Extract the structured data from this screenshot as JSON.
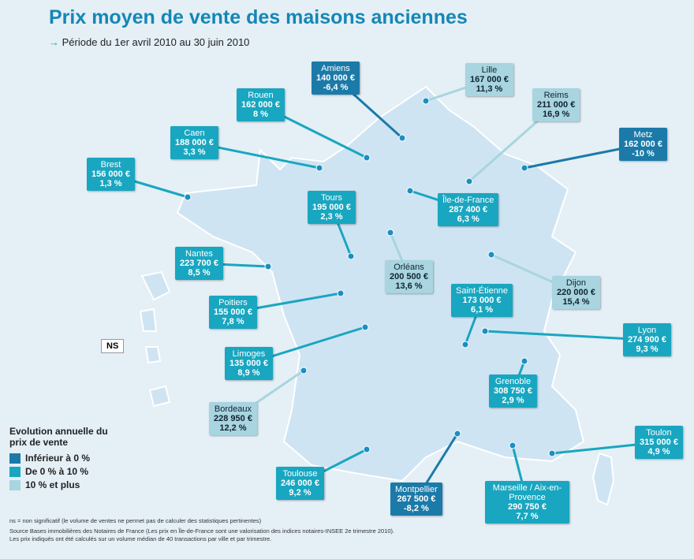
{
  "header": {
    "title": "Prix moyen de vente des maisons anciennes",
    "subtitle": "Période du 1er avril 2010 au 30 juin 2010"
  },
  "cities": [
    {
      "name": "Amiens",
      "price": "140 000 €",
      "change": "-6,4 %",
      "color": "#1b7aa8"
    },
    {
      "name": "Lille",
      "price": "167 000 €",
      "change": "11,3 %",
      "color": "#a8d5df"
    },
    {
      "name": "Rouen",
      "price": "162 000 €",
      "change": "8 %",
      "color": "#19a6c0"
    },
    {
      "name": "Reims",
      "price": "211 000 €",
      "change": "16,9 %",
      "color": "#a8d5df"
    },
    {
      "name": "Metz",
      "price": "162 000 €",
      "change": "-10 %",
      "color": "#1b7aa8"
    },
    {
      "name": "Caen",
      "price": "188 000 €",
      "change": "3,3 %",
      "color": "#19a6c0"
    },
    {
      "name": "Brest",
      "price": "156 000 €",
      "change": "1,3 %",
      "color": "#19a6c0"
    },
    {
      "name": "Tours",
      "price": "195 000 €",
      "change": "2,3 %",
      "color": "#19a6c0"
    },
    {
      "name": "Île-de-France",
      "price": "287 400 €",
      "change": "6,3 %",
      "color": "#19a6c0"
    },
    {
      "name": "Nantes",
      "price": "223 700 €",
      "change": "8,5 %",
      "color": "#19a6c0"
    },
    {
      "name": "Orléans",
      "price": "200 500 €",
      "change": "13,6 %",
      "color": "#a8d5df"
    },
    {
      "name": "Saint-Étienne",
      "price": "173 000 €",
      "change": "6,1 %",
      "color": "#19a6c0"
    },
    {
      "name": "Dijon",
      "price": "220 000 €",
      "change": "15,4 %",
      "color": "#a8d5df"
    },
    {
      "name": "Poitiers",
      "price": "155 000 €",
      "change": "7,8 %",
      "color": "#19a6c0"
    },
    {
      "name": "Lyon",
      "price": "274 900 €",
      "change": "9,3 %",
      "color": "#19a6c0"
    },
    {
      "name": "Limoges",
      "price": "135 000 €",
      "change": "8,9 %",
      "color": "#19a6c0"
    },
    {
      "name": "Grenoble",
      "price": "308 750 €",
      "change": "2,9 %",
      "color": "#19a6c0"
    },
    {
      "name": "Bordeaux",
      "price": "228 950 €",
      "change": "12,2 %",
      "color": "#a8d5df"
    },
    {
      "name": "Toulon",
      "price": "315 000 €",
      "change": "4,9 %",
      "color": "#19a6c0"
    },
    {
      "name": "Toulouse",
      "price": "246 000 €",
      "change": "9,2 %",
      "color": "#19a6c0"
    },
    {
      "name": "Montpellier",
      "price": "267 500 €",
      "change": "-8,2 %",
      "color": "#1b7aa8"
    },
    {
      "name": "Marseille / Aix-en-Provence",
      "price": "290 750 €",
      "change": "7,7 %",
      "color": "#19a6c0"
    }
  ],
  "ns_label": "NS",
  "legend": {
    "title": "Evolution annuelle du prix de vente",
    "items": [
      {
        "label": "Inférieur à 0 %",
        "color": "#1b7aa8"
      },
      {
        "label": "De 0 % à 10 %",
        "color": "#19a6c0"
      },
      {
        "label": "10 % et plus",
        "color": "#a8d5df"
      }
    ]
  },
  "notes": [
    "ns = non significatif (le volume de ventes ne permet pas de calculer des statistiques pertinentes)",
    "Source Bases immobilières des Notaires de France (Les prix en Île-de-France sont une valorisation des indices notaires-INSEE 2e trimestre 2010). Les prix indiqués ont été calculés sur un volume médian de 40 transactions par ville et par trimestre."
  ]
}
